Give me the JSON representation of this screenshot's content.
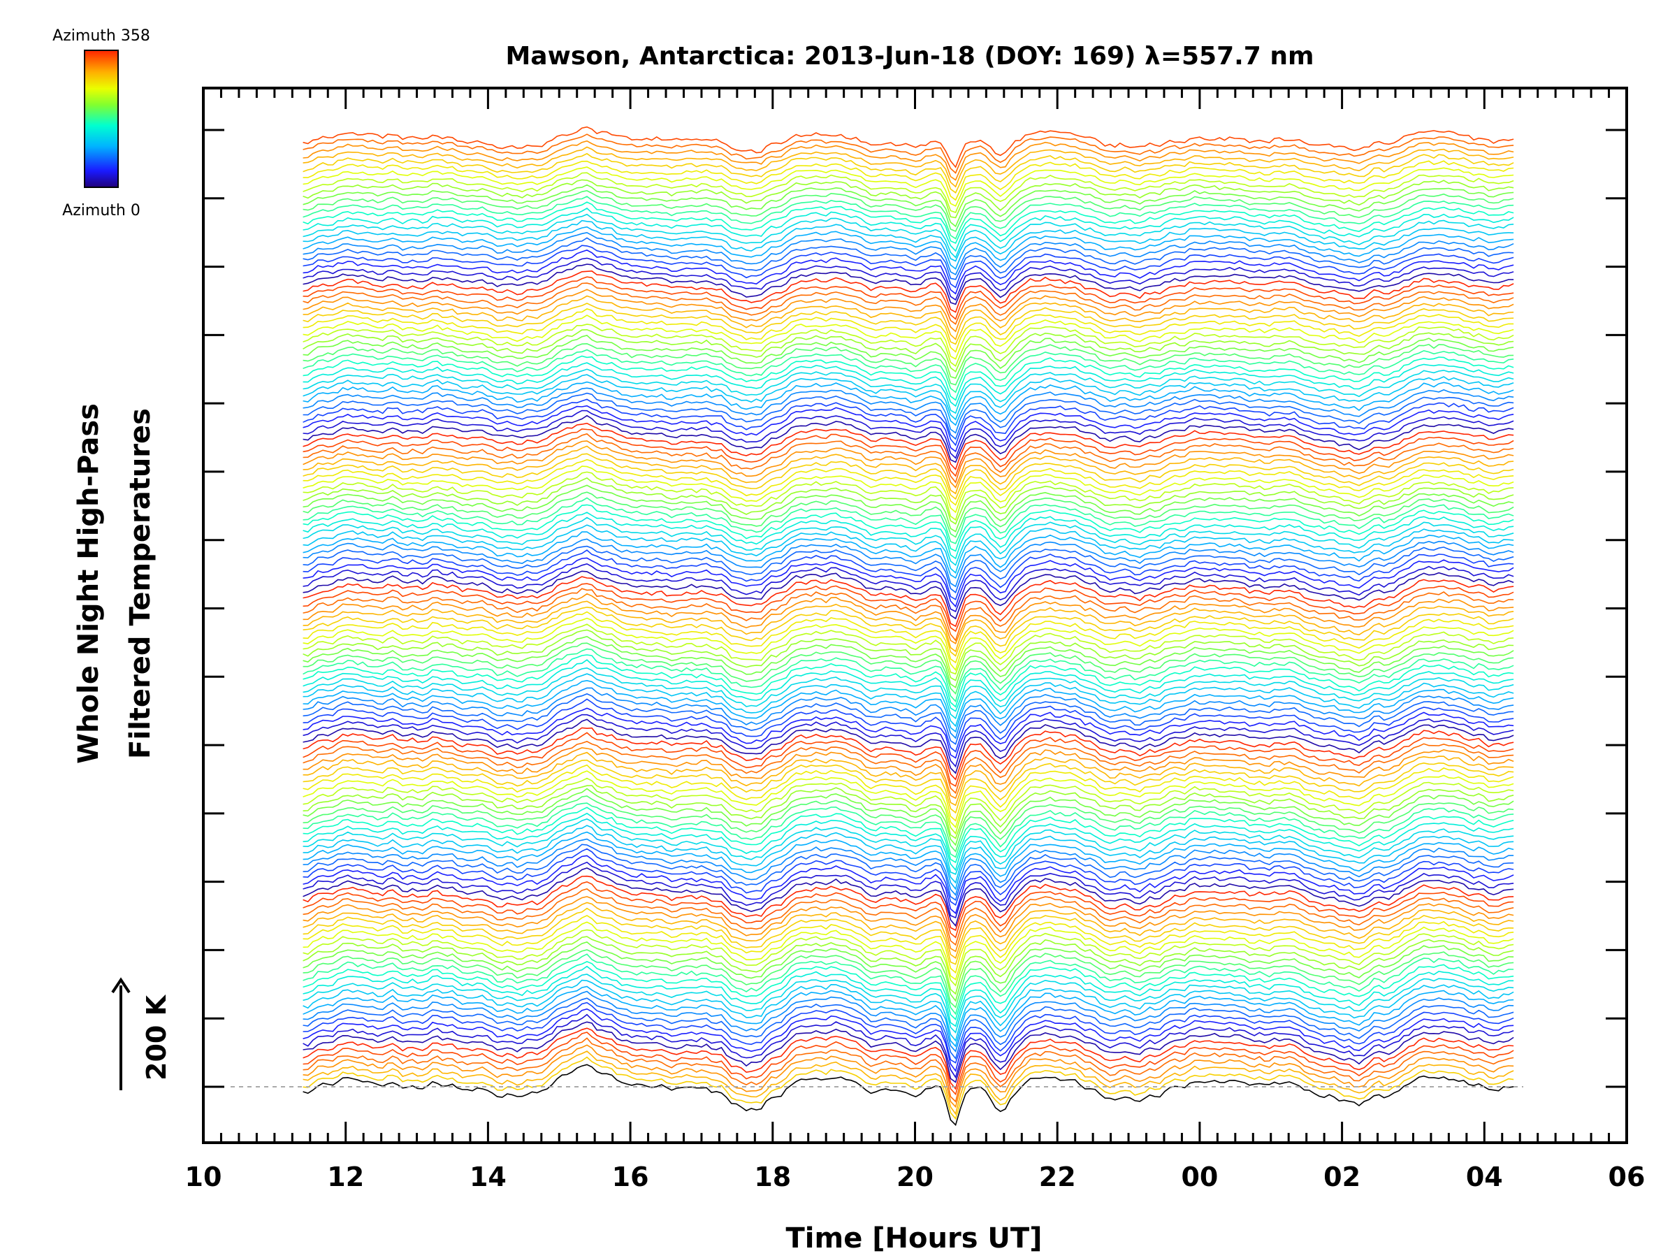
{
  "chart_data": {
    "type": "line",
    "title": "Mawson, Antarctica: 2013-Jun-18 (DOY: 169) λ=557.7 nm",
    "xlabel": "Time [Hours UT]",
    "ylabel_lines": [
      "Whole Night High-Pass",
      "Filtered Temperatures"
    ],
    "scale_label": "200 K",
    "x_ticks": [
      "10",
      "12",
      "14",
      "16",
      "18",
      "20",
      "22",
      "00",
      "02",
      "04",
      "06"
    ],
    "x_range_hours": [
      10,
      30
    ],
    "data_x_range_hours": [
      11.4,
      28.45
    ],
    "colorbar": {
      "top_label": "Azimuth 358",
      "bottom_label": "Azimuth 0",
      "range": [
        0,
        358
      ]
    },
    "grid": false,
    "dip_events_hours": [
      17.7,
      20.55,
      21.2,
      25.8
    ],
    "notes": "Stacked high-pass filtered temperature traces, one per azimuth, offset vertically and colour-coded by azimuth (rainbow colormap 0-358). Bottom trace is black with a dashed baseline."
  }
}
